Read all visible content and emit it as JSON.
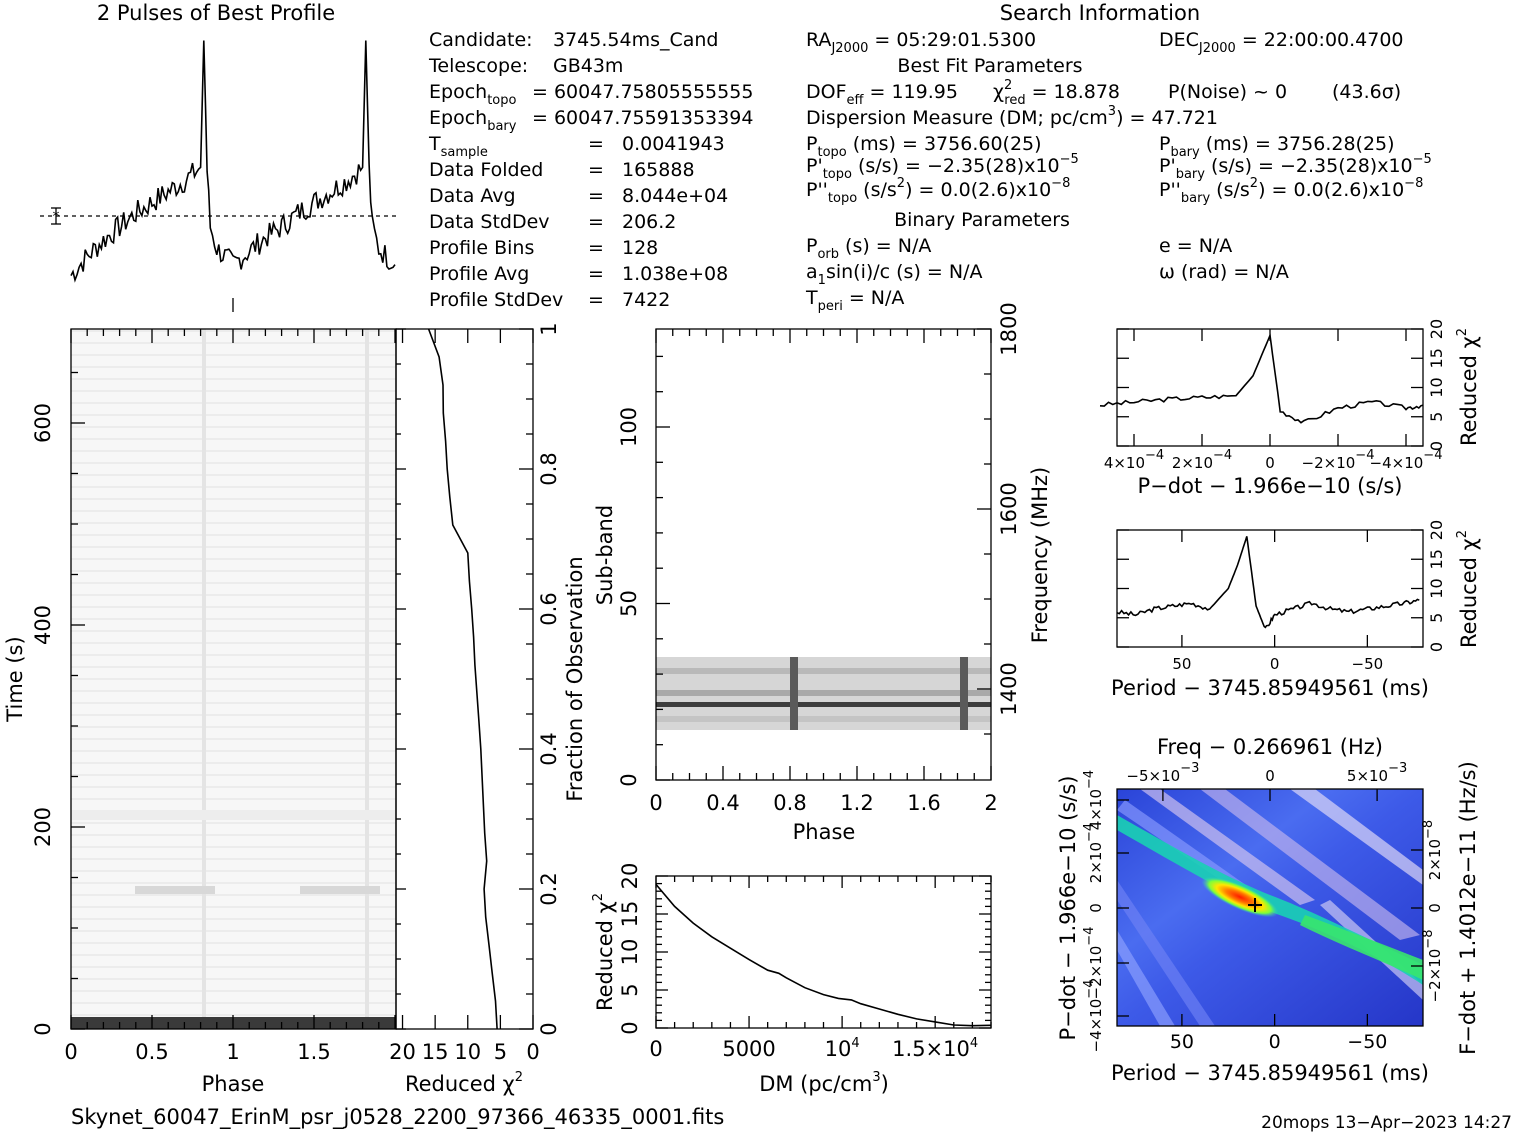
{
  "title_profile": "2 Pulses of Best Profile",
  "title_search": "Search Information",
  "info": {
    "candidate": {
      "label": "Candidate:",
      "value": "3745.54ms_Cand"
    },
    "telescope": {
      "label": "Telescope:",
      "value": "GB43m"
    },
    "epoch_topo": {
      "label": "Epoch",
      "sub": "topo",
      "value": "= 60047.75805555555"
    },
    "epoch_bary": {
      "label": "Epoch",
      "sub": "bary",
      "value": "= 60047.75591353394"
    },
    "tsample": {
      "label": "T",
      "sub": "sample",
      "value": "0.0041943"
    },
    "rows": [
      {
        "label": "Data Folded",
        "value": "165888"
      },
      {
        "label": "Data Avg",
        "value": "8.044e+04"
      },
      {
        "label": "Data StdDev",
        "value": "206.2"
      },
      {
        "label": "Profile Bins",
        "value": "128"
      },
      {
        "label": "Profile Avg",
        "value": "1.038e+08"
      },
      {
        "label": "Profile StdDev",
        "value": "7422"
      }
    ],
    "equals": "="
  },
  "search": {
    "ra": {
      "label": "RA",
      "sub": "J2000",
      "value": "= 05:29:01.5300"
    },
    "dec": {
      "label": "DEC",
      "sub": "J2000",
      "value": "= 22:00:00.4700"
    },
    "best_fit_title": "Best Fit Parameters",
    "dof": {
      "label": "DOF",
      "sub": "eff",
      "value": "= 119.95"
    },
    "chi": {
      "label": "χ",
      "sup": "2",
      "sub": "red",
      "value": "= 18.878"
    },
    "pnoise": "P(Noise) ~ 0",
    "sigma": "(43.6σ)",
    "dm_line": {
      "prefix": "Dispersion Measure (DM; pc/cm",
      "sup": "3",
      "suffix": ") = 47.721"
    },
    "ptopo": {
      "label": "P",
      "sub": "topo",
      "value": "(ms) =  3756.60(25)"
    },
    "pbary": {
      "label": "P",
      "sub": "bary",
      "value": "(ms) =  3756.28(25)"
    },
    "pdtopo": {
      "label": "P'",
      "sub": "topo",
      "value": "(s/s) = −2.35(28)x10",
      "exp": "−5"
    },
    "pdbary": {
      "label": "P'",
      "sub": "bary",
      "value": "(s/s) = −2.35(28)x10",
      "exp": "−5"
    },
    "pddtopo": {
      "label": "P''",
      "sub": "topo",
      "value": "(s/s",
      "sup": "2",
      "value2": ") = 0.0(2.6)x10",
      "exp": "−8"
    },
    "pddbary": {
      "label": "P''",
      "sub": "bary",
      "value": "(s/s",
      "sup": "2",
      "value2": ") = 0.0(2.6)x10",
      "exp": "−8"
    },
    "binary_title": "Binary Parameters",
    "porb": {
      "label": "P",
      "sub": "orb",
      "value": "(s) = N/A"
    },
    "ecc": "e = N/A",
    "a1": {
      "label": "a",
      "sub": "1",
      "value": "sin(i)/c (s) = N/A"
    },
    "omega": "ω (rad) = N/A",
    "tperi": {
      "label": "T",
      "sub": "peri",
      "value": "= N/A"
    }
  },
  "time_phase": {
    "xlabel": "Phase",
    "ylabel": "Time (s)",
    "xticks": [
      "0",
      "0.5",
      "1",
      "1.5"
    ],
    "yticks": [
      "0",
      "200",
      "400",
      "600"
    ]
  },
  "chi_time": {
    "xlabel_prefix": "Reduced χ",
    "xlabel_sup": "2",
    "xticks": [
      "20",
      "15",
      "10",
      "5",
      "0"
    ],
    "rlabel": "Fraction of Observation",
    "rticks": [
      "0",
      "0.2",
      "0.4",
      "0.6",
      "0.8",
      "1"
    ]
  },
  "subband": {
    "xlabel": "Phase",
    "ylabel": "Sub-band",
    "rlabel": "Frequency (MHz)",
    "xticks": [
      "0",
      "0.4",
      "0.8",
      "1.2",
      "1.6",
      "2"
    ],
    "yticks": [
      "0",
      "50",
      "100"
    ],
    "rticks": [
      "1400",
      "1600",
      "1800"
    ]
  },
  "dm_plot": {
    "xlabel_prefix": "DM (pc/cm",
    "xlabel_sup": "3",
    "xlabel_suffix": ")",
    "ylabel_prefix": "Reduced χ",
    "ylabel_sup": "2",
    "xticks": [
      "0",
      "5000",
      "10",
      "1.5×10"
    ],
    "xtick_sups": [
      "",
      "",
      "4",
      "4"
    ],
    "yticks": [
      "0",
      "5",
      "10",
      "15",
      "20"
    ]
  },
  "pdot_plot": {
    "xlabel": "P−dot − 1.966e−10 (s/s)",
    "rlabel_prefix": "Reduced χ",
    "rlabel_sup": "2",
    "xticks": [
      "4×10",
      "2×10",
      "0",
      "−2×10",
      "−4×10"
    ],
    "xtick_sups": [
      "−4",
      "−4",
      "",
      "−4",
      "−4"
    ],
    "yticks": [
      "0",
      "5",
      "10",
      "15",
      "20"
    ]
  },
  "period_plot": {
    "xlabel": "Period − 3745.85949561 (ms)",
    "rlabel_prefix": "Reduced χ",
    "rlabel_sup": "2",
    "xticks": [
      "50",
      "0",
      "−50"
    ],
    "yticks": [
      "0",
      "5",
      "10",
      "15",
      "20"
    ]
  },
  "map_plot": {
    "title": "Freq − 0.266961 (Hz)",
    "xlabel": "Period − 3745.85949561 (ms)",
    "ylabel": "P−dot − 1.966e−10 (s/s)",
    "rlabel": "F−dot + 1.4012e−11 (Hz/s)",
    "xticks": [
      "50",
      "0",
      "−50"
    ],
    "topticks": [
      "−5×10",
      "0",
      "5×10"
    ],
    "topsups": [
      "−3",
      "",
      "−3"
    ],
    "ylefts": [
      "4×10",
      "2×10",
      "0",
      "−2×10",
      "−4×10"
    ],
    "yleftsups": [
      "−4",
      "−4",
      "",
      "−4",
      "−4"
    ],
    "yrights": [
      "2×10",
      "0",
      "−2×10"
    ],
    "yrightsups": [
      "−8",
      "",
      "−8"
    ]
  },
  "footer": {
    "filename": "Skynet_60047_ErinM_psr_j0528_2200_97366_46335_0001.fits",
    "stamp": "20mops 13−Apr−2023 14:27"
  },
  "chart_data": [
    {
      "type": "line",
      "x": [
        0,
        0.1,
        0.2,
        0.3,
        0.4,
        0.5,
        0.6,
        0.7,
        0.8,
        0.82,
        0.84,
        0.86,
        0.9,
        1.0,
        1.1,
        1.2,
        1.3,
        1.4,
        1.5,
        1.6,
        1.7,
        1.8,
        1.82,
        1.84,
        1.86,
        1.9,
        2.0
      ],
      "values": [
        -2.2,
        -1.5,
        -0.9,
        -0.4,
        0.1,
        0.5,
        0.9,
        1.3,
        1.8,
        6.5,
        1.7,
        -0.4,
        -1.2,
        -1.8,
        -1.3,
        -0.8,
        -0.4,
        0.1,
        0.5,
        0.9,
        1.3,
        1.8,
        6.5,
        1.7,
        -0.4,
        -1.2,
        -1.8
      ]
    },
    {
      "type": "line",
      "x": [
        0,
        1000,
        2000,
        3000,
        4000,
        5000,
        6000,
        6600,
        7000,
        8000,
        9000,
        9800,
        10500,
        11000,
        12000,
        13000,
        14000,
        15000,
        16000,
        17000,
        18000
      ],
      "values": [
        18.9,
        16.0,
        13.8,
        12.0,
        10.5,
        9.0,
        7.6,
        7.2,
        6.6,
        5.3,
        4.4,
        3.9,
        3.7,
        3.2,
        2.5,
        1.8,
        1.2,
        0.8,
        0.4,
        0.3,
        0.35
      ],
      "xlim": [
        0,
        18000
      ],
      "ylim": [
        0,
        20
      ]
    },
    {
      "type": "line",
      "x": [
        0.0005,
        0.0004,
        0.0003,
        0.0002,
        0.0001,
        5e-05,
        0.0,
        -3e-05,
        -0.0001,
        -0.0002,
        -0.0003,
        -0.0004,
        -0.00045
      ],
      "values": [
        7,
        7.5,
        8,
        8.3,
        8.6,
        12,
        18.9,
        6,
        4,
        6.5,
        7.5,
        6.5,
        7
      ],
      "xlim": [
        0.00045,
        -0.00045
      ],
      "ylim": [
        0,
        20
      ]
    },
    {
      "type": "line",
      "x": [
        85,
        75,
        65,
        55,
        45,
        35,
        25,
        20,
        15,
        10,
        5,
        0,
        -10,
        -20,
        -30,
        -40,
        -50,
        -60,
        -70,
        -78
      ],
      "values": [
        6,
        5.5,
        6.5,
        7,
        7.5,
        6.5,
        10,
        14,
        18.9,
        7,
        3,
        5.5,
        6.5,
        7.5,
        6.5,
        6,
        6.5,
        7,
        7.5,
        8
      ],
      "xlim": [
        85,
        -80
      ],
      "ylim": [
        0,
        20
      ]
    }
  ]
}
